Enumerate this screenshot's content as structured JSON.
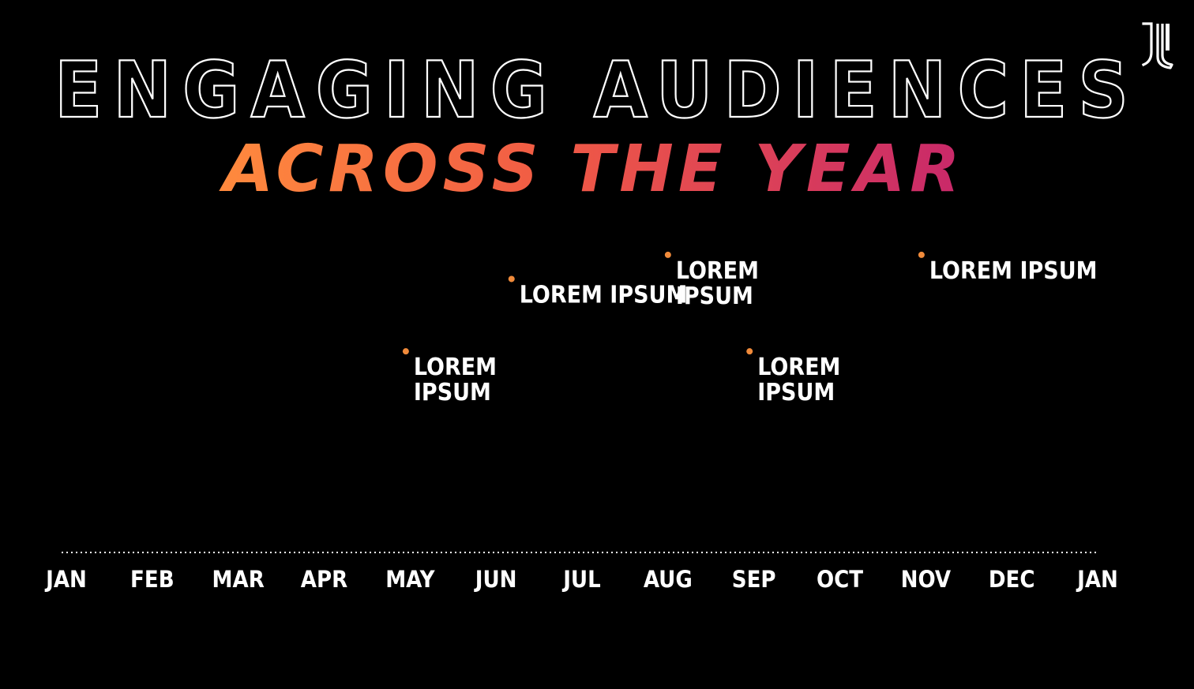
{
  "header": {
    "title_line1": "ENGAGING AUDIENCES",
    "title_line2": "ACROSS THE YEAR"
  },
  "brand": {
    "logo_icon": "juventus-j-logo-icon"
  },
  "colors": {
    "background": "#000000",
    "text": "#ffffff",
    "gradient_orange": "#f7813a",
    "gradient_pink": "#d6336c",
    "gradient_purple": "#7a2f96",
    "dot_color": "#f08a3a"
  },
  "timeline": {
    "months": [
      "JAN",
      "FEB",
      "MAR",
      "APR",
      "MAY",
      "JUN",
      "JUL",
      "AUG",
      "SEP",
      "OCT",
      "NOV",
      "DEC",
      "JAN"
    ],
    "events": [
      {
        "month": 4,
        "offset": -0.05,
        "height": 0.62,
        "label_lines": [
          "LOREM",
          "IPSUM"
        ]
      },
      {
        "month": 5,
        "offset": 0.18,
        "height": 0.86,
        "label_lines": [
          "LOREM IPSUM"
        ]
      },
      {
        "month": 7,
        "offset": 0.0,
        "height": 0.94,
        "label_lines": [
          "LOREM",
          "IPSUM"
        ]
      },
      {
        "month": 8,
        "offset": -0.05,
        "height": 0.62,
        "label_lines": [
          "LOREM",
          "IPSUM"
        ]
      },
      {
        "month": 10,
        "offset": -0.05,
        "height": 0.94,
        "label_lines": [
          "LOREM IPSUM"
        ]
      }
    ]
  }
}
